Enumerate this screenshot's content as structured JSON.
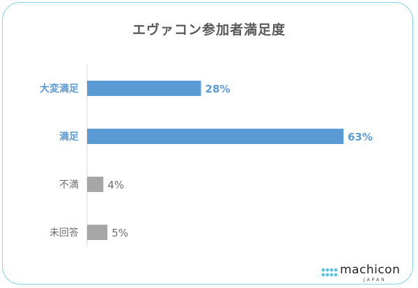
{
  "chart_data": {
    "type": "bar",
    "orientation": "horizontal",
    "title": "エヴァコン参加者満足度",
    "categories": [
      "大変満足",
      "満足",
      "不満",
      "未回答"
    ],
    "values": [
      28,
      63,
      4,
      5
    ],
    "value_labels": [
      "28%",
      "63%",
      "4%",
      "5%"
    ],
    "xlim": [
      0,
      63
    ],
    "grid": false,
    "colors": {
      "highlight_bar": "#5b9bd5",
      "muted_bar": "#a6a6a6",
      "highlight_text": "#5b9bd5",
      "muted_text": "#6e6e6e",
      "axis": "#d9d9d9"
    },
    "highlight": [
      true,
      true,
      false,
      false
    ]
  },
  "brand": {
    "name": "machicon",
    "sub": "JAPAN",
    "icon": "dots-logo-icon"
  }
}
